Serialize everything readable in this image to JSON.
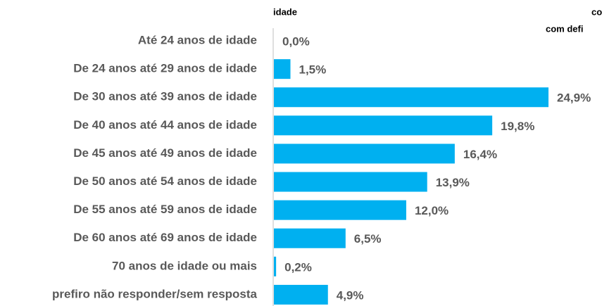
{
  "chart_data": {
    "type": "bar",
    "orientation": "horizontal",
    "annotations": [
      "idade",
      "co",
      "com defi"
    ],
    "categories": [
      "Até 24 anos de idade",
      "De 24 anos até 29 anos de idade",
      "De 30 anos até 39 anos de idade",
      "De 40 anos até 44 anos de idade",
      "De 45 anos até 49 anos de idade",
      "De 50 anos até 54 anos de idade",
      "De 55 anos até 59 anos de idade",
      "De 60 anos até 69 anos de idade",
      "70 anos de idade ou mais",
      "prefiro não responder/sem resposta"
    ],
    "values": [
      0.0,
      1.5,
      24.9,
      19.8,
      16.4,
      13.9,
      12.0,
      6.5,
      0.2,
      4.9
    ],
    "value_labels": [
      "0,0%",
      "1,5%",
      "24,9%",
      "19,8%",
      "16,4%",
      "13,9%",
      "12,0%",
      "6,5%",
      "0,2%",
      "4,9%"
    ],
    "color": "#00b0f0"
  }
}
